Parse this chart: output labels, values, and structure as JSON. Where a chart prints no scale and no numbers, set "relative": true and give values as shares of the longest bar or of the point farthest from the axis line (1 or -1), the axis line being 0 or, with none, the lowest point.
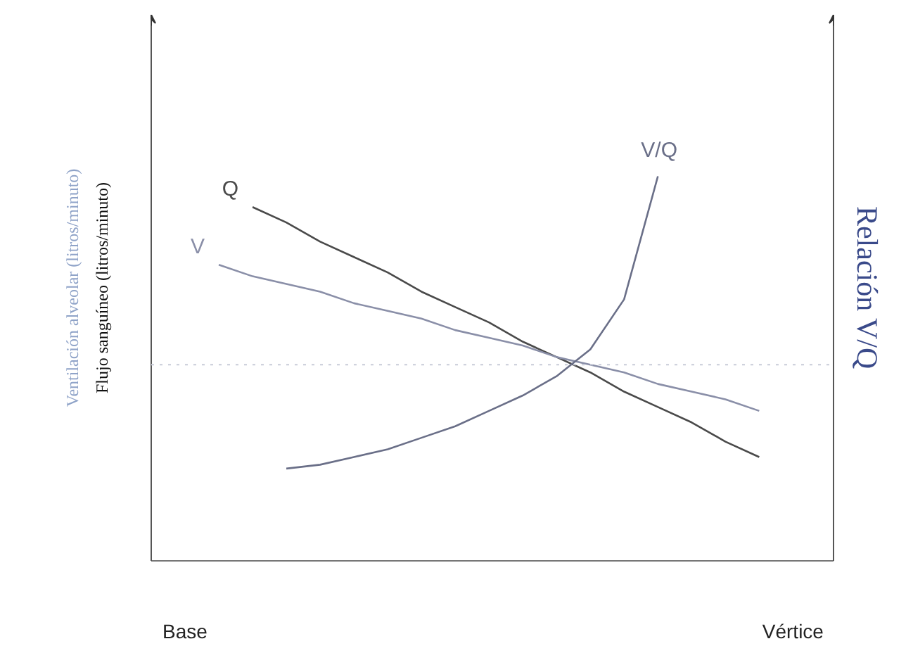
{
  "chart_data": {
    "type": "line",
    "relative": true,
    "ylabel": "Flujo sanguíneo (litros/minuto)",
    "y2label": "Relación V/Q",
    "annotations": [
      "Ventilación alveolar (litros/minuto)"
    ],
    "categories": [
      "Base",
      null,
      null,
      null,
      null,
      null,
      null,
      null,
      null,
      null,
      null,
      null,
      null,
      null,
      null,
      null,
      null,
      null,
      "Vértice"
    ],
    "series": [
      {
        "name": "Q",
        "color": "#4a4a4a",
        "values": [
          null,
          null,
          0.92,
          0.88,
          0.83,
          0.79,
          0.75,
          0.7,
          0.66,
          0.62,
          0.57,
          0.53,
          0.49,
          0.44,
          0.4,
          0.36,
          0.31,
          0.27,
          null
        ]
      },
      {
        "name": "V",
        "color": "#8a8fa8",
        "values": [
          null,
          0.77,
          0.74,
          0.72,
          0.7,
          0.67,
          0.65,
          0.63,
          0.6,
          0.58,
          0.56,
          0.53,
          0.51,
          0.49,
          0.46,
          0.44,
          0.42,
          0.39,
          null
        ]
      },
      {
        "name": "V/Q",
        "color": "#6a6f88",
        "values": [
          null,
          null,
          null,
          0.24,
          0.25,
          0.27,
          0.29,
          0.32,
          0.35,
          0.39,
          0.43,
          0.48,
          0.55,
          0.68,
          1.0,
          null,
          null,
          null,
          null
        ]
      }
    ],
    "ref_lines": [
      {
        "axis": "y",
        "value": 0.51,
        "color": "#c8ccd8",
        "line_style": "dotted"
      }
    ],
    "grid": false,
    "tick_labels": "x"
  }
}
